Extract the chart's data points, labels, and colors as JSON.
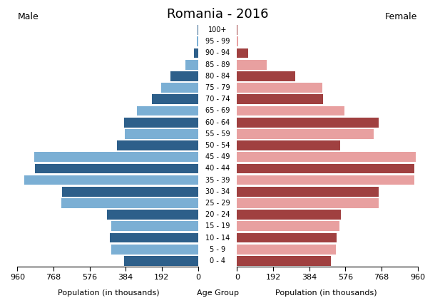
{
  "title": "Romania - 2016",
  "age_groups": [
    "100+",
    "95 - 99",
    "90 - 94",
    "85 - 89",
    "80 - 84",
    "75 - 79",
    "70 - 74",
    "65 - 69",
    "60 - 64",
    "55 - 59",
    "50 - 54",
    "45 - 49",
    "40 - 44",
    "35 - 39",
    "30 - 34",
    "25 - 29",
    "20 - 24",
    "15 - 19",
    "10 - 14",
    "5 - 9",
    "0 - 4"
  ],
  "male": [
    3,
    6,
    20,
    65,
    148,
    195,
    245,
    325,
    392,
    388,
    432,
    872,
    868,
    922,
    722,
    728,
    482,
    460,
    470,
    460,
    392
  ],
  "female": [
    2,
    6,
    58,
    158,
    308,
    452,
    458,
    572,
    752,
    728,
    550,
    952,
    942,
    942,
    752,
    752,
    552,
    545,
    530,
    525,
    498
  ],
  "male_dark_color": "#2d5f8a",
  "male_light_color": "#7bafd4",
  "female_dark_color": "#a04040",
  "female_light_color": "#e8a0a0",
  "xlabel_left": "Population (in thousands)",
  "xlabel_center": "Age Group",
  "xlabel_right": "Population (in thousands)",
  "label_left": "Male",
  "label_right": "Female",
  "xlim": 960,
  "xticks": [
    0,
    192,
    384,
    576,
    768,
    960
  ],
  "background_color": "#ffffff"
}
